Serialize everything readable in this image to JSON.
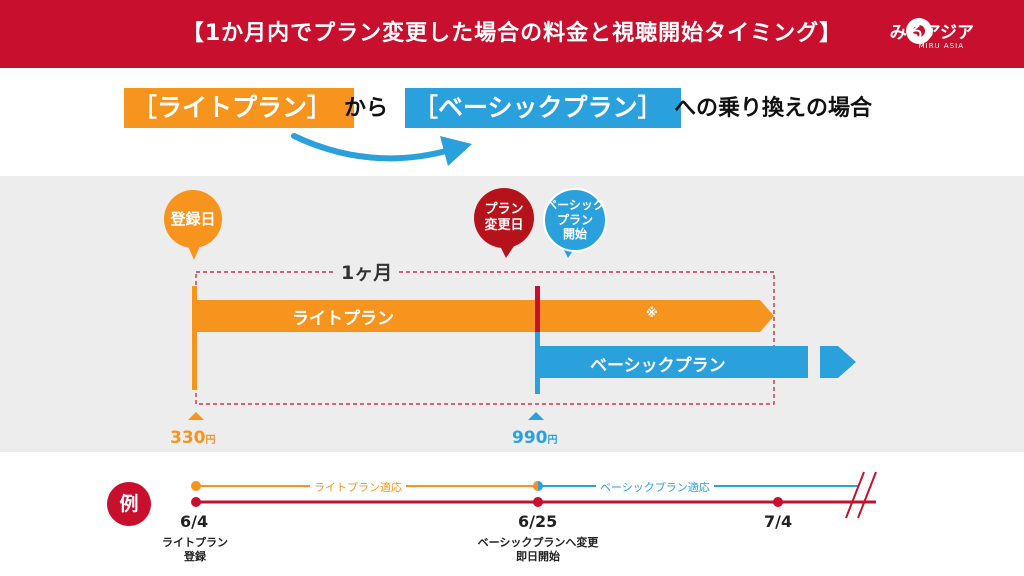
{
  "header": {
    "title": "【1か月内でプラン変更した場合の料金と視聴開始タイミング】",
    "logo_text": "みるアジア",
    "logo_sub": "MIRU ASIA"
  },
  "subtitle": {
    "from_plan": "［ライトプラン］",
    "from_word": "から",
    "to_plan": "［ベーシックプラン］",
    "suffix": "への乗り換えの場合"
  },
  "diagram": {
    "register_bubble": "登録日",
    "change_bubble": "プラン\n変更日",
    "basic_start_bubble": "ベーシック\nプラン\n開始",
    "month_label": "1ヶ月",
    "light_bar_label": "ライトプラン",
    "light_bar_note": "※",
    "basic_bar_label": "ベーシックプラン",
    "price_light": "330",
    "price_basic": "990",
    "price_unit": "円"
  },
  "example": {
    "badge": "例",
    "light_applied": "ライトプラン適応",
    "basic_applied": "ベーシックプラン適応",
    "dates": [
      "6/4",
      "6/25",
      "7/4"
    ],
    "note_register": "ライトプラン\n登録",
    "note_change": "ベーシックプランへ変更\n即日開始"
  },
  "colors": {
    "red": "#c8102e",
    "orange": "#f7941d",
    "blue": "#2aa1dd",
    "gray": "#ededed"
  }
}
